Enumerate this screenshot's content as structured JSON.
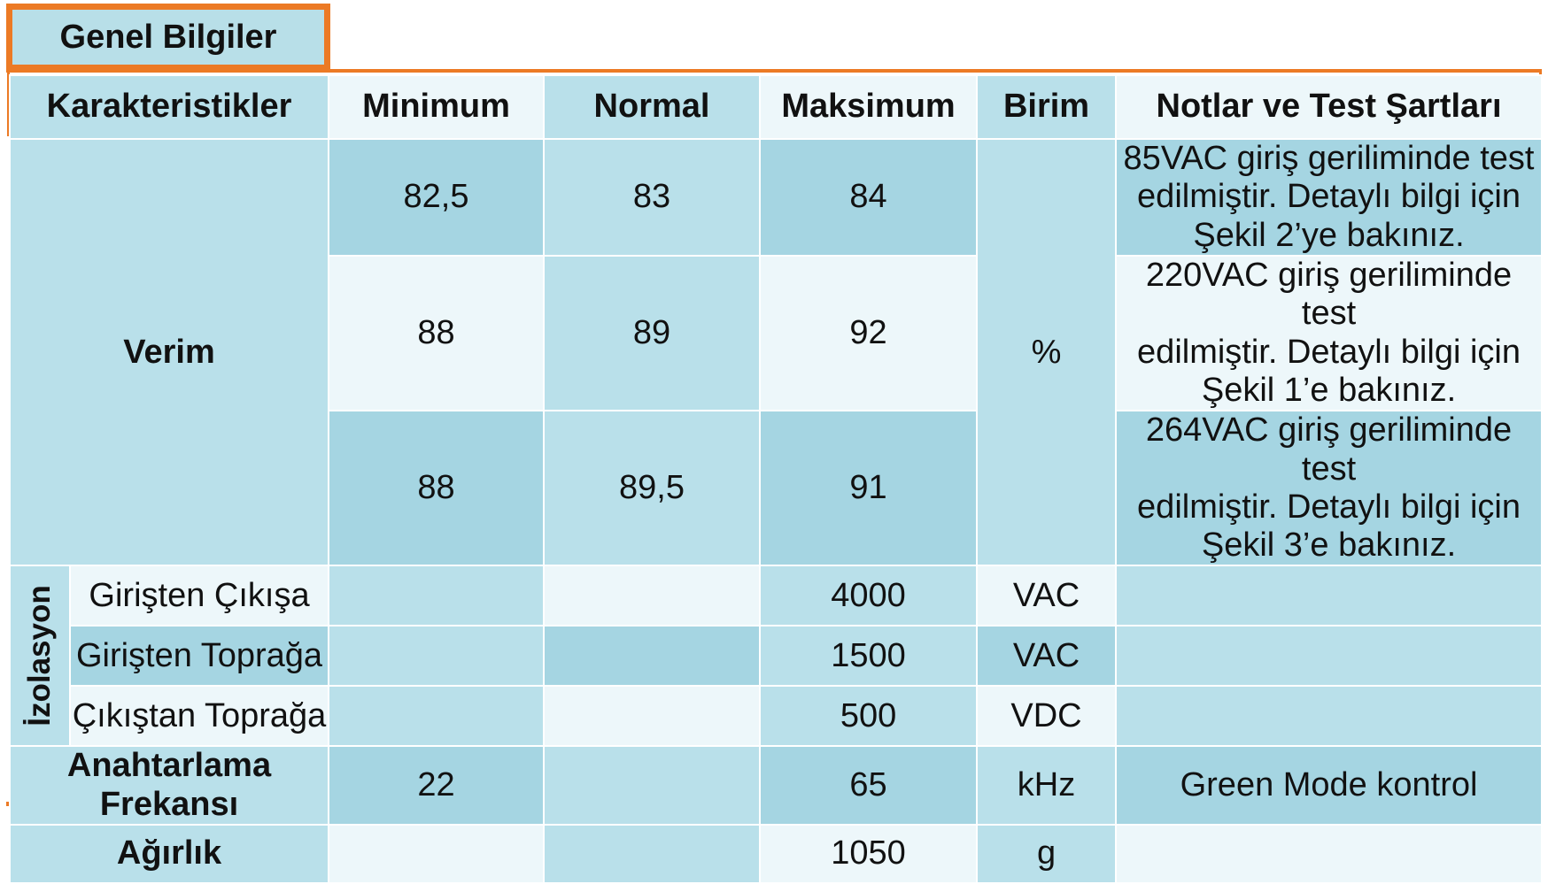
{
  "title": "Genel Bilgiler",
  "headers": {
    "characteristics": "Karakteristikler",
    "min": "Minimum",
    "normal": "Normal",
    "max": "Maksimum",
    "unit": "Birim",
    "notes": "Notlar ve Test Şartları"
  },
  "efficiency": {
    "label": "Verim",
    "unit": "%",
    "rows": [
      {
        "min": "82,5",
        "normal": "83",
        "max": "84",
        "note": [
          "85VAC giriş geriliminde test",
          "edilmiştir. Detaylı bilgi için",
          "Şekil 2’ye bakınız."
        ]
      },
      {
        "min": "88",
        "normal": "89",
        "max": "92",
        "note": [
          "220VAC giriş geriliminde test",
          "edilmiştir. Detaylı bilgi için",
          "Şekil 1’e bakınız."
        ]
      },
      {
        "min": "88",
        "normal": "89,5",
        "max": "91",
        "note": [
          "264VAC giriş geriliminde test",
          "edilmiştir. Detaylı bilgi için",
          "Şekil 3’e bakınız."
        ]
      }
    ]
  },
  "isolation": {
    "label": "İzolasyon",
    "rows": [
      {
        "label": "Girişten Çıkışa",
        "max": "4000",
        "unit": "VAC"
      },
      {
        "label": "Girişten Toprağa",
        "max": "1500",
        "unit": "VAC"
      },
      {
        "label": "Çıkıştan Toprağa",
        "max": "500",
        "unit": "VDC"
      }
    ]
  },
  "switching": {
    "label": [
      "Anahtarlama",
      "Frekansı"
    ],
    "min": "22",
    "max": "65",
    "unit": "kHz",
    "note": "Green Mode kontrol"
  },
  "weight": {
    "label": "Ağırlık",
    "max": "1050",
    "unit": "g"
  },
  "colors": {
    "accent_orange": "#ec7a25",
    "cell_light": "#b9e0ea",
    "cell_dark": "#a5d5e2",
    "cell_white": "#edf7fa"
  }
}
